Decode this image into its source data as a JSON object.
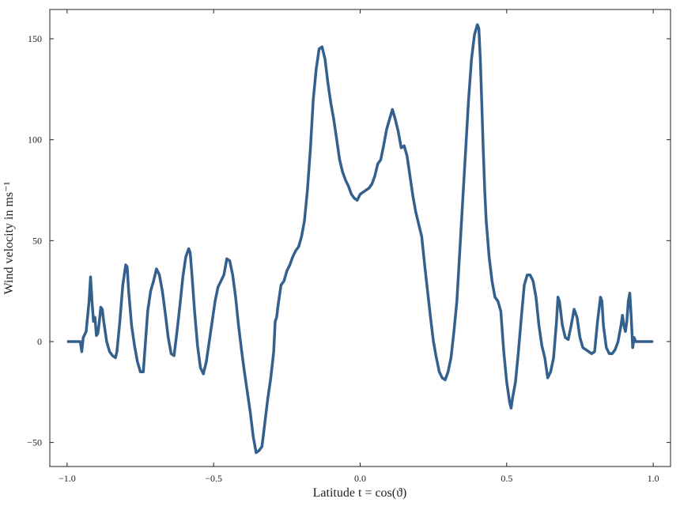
{
  "chart_data": {
    "type": "line",
    "xlabel": "Latitude t = cos(ϑ)",
    "ylabel": "Wind velocity in ms⁻¹",
    "xlim": [
      -1.059,
      1.059
    ],
    "ylim": [
      -61.9,
      164.5
    ],
    "xticks": [
      {
        "value": -1,
        "label": "−1.0"
      },
      {
        "value": -0.5,
        "label": "−0.5"
      },
      {
        "value": 0,
        "label": "0.0"
      },
      {
        "value": 0.5,
        "label": "0.5"
      },
      {
        "value": 1,
        "label": "1.0"
      }
    ],
    "yticks": [
      {
        "value": -50,
        "label": "−50"
      },
      0,
      50,
      100,
      150
    ],
    "color": "#34608d",
    "x": [
      -1.0,
      -0.98,
      -0.96,
      -0.955,
      -0.95,
      -0.945,
      -0.935,
      -0.925,
      -0.92,
      -0.915,
      -0.91,
      -0.905,
      -0.9,
      -0.895,
      -0.89,
      -0.885,
      -0.88,
      -0.875,
      -0.865,
      -0.855,
      -0.845,
      -0.835,
      -0.83,
      -0.82,
      -0.81,
      -0.8,
      -0.795,
      -0.79,
      -0.78,
      -0.77,
      -0.76,
      -0.75,
      -0.74,
      -0.735,
      -0.725,
      -0.715,
      -0.705,
      -0.695,
      -0.685,
      -0.675,
      -0.665,
      -0.655,
      -0.645,
      -0.635,
      -0.625,
      -0.615,
      -0.605,
      -0.595,
      -0.585,
      -0.58,
      -0.575,
      -0.565,
      -0.555,
      -0.545,
      -0.535,
      -0.525,
      -0.515,
      -0.505,
      -0.495,
      -0.485,
      -0.475,
      -0.465,
      -0.455,
      -0.445,
      -0.435,
      -0.425,
      -0.415,
      -0.405,
      -0.395,
      -0.385,
      -0.375,
      -0.365,
      -0.355,
      -0.345,
      -0.335,
      -0.325,
      -0.315,
      -0.305,
      -0.295,
      -0.29,
      -0.285,
      -0.28,
      -0.27,
      -0.26,
      -0.25,
      -0.24,
      -0.23,
      -0.22,
      -0.21,
      -0.2,
      -0.19,
      -0.18,
      -0.17,
      -0.16,
      -0.15,
      -0.14,
      -0.13,
      -0.12,
      -0.11,
      -0.1,
      -0.09,
      -0.08,
      -0.07,
      -0.06,
      -0.05,
      -0.04,
      -0.03,
      -0.02,
      -0.01,
      0.0,
      0.01,
      0.02,
      0.03,
      0.04,
      0.05,
      0.06,
      0.07,
      0.08,
      0.09,
      0.1,
      0.11,
      0.12,
      0.13,
      0.14,
      0.15,
      0.16,
      0.17,
      0.18,
      0.19,
      0.2,
      0.21,
      0.22,
      0.23,
      0.24,
      0.25,
      0.26,
      0.27,
      0.28,
      0.29,
      0.3,
      0.31,
      0.32,
      0.33,
      0.34,
      0.35,
      0.36,
      0.37,
      0.38,
      0.39,
      0.4,
      0.405,
      0.41,
      0.415,
      0.42,
      0.425,
      0.43,
      0.44,
      0.45,
      0.46,
      0.47,
      0.48,
      0.49,
      0.5,
      0.51,
      0.515,
      0.52,
      0.53,
      0.54,
      0.55,
      0.56,
      0.57,
      0.58,
      0.59,
      0.6,
      0.61,
      0.62,
      0.63,
      0.64,
      0.65,
      0.66,
      0.67,
      0.675,
      0.68,
      0.69,
      0.7,
      0.71,
      0.72,
      0.73,
      0.74,
      0.75,
      0.76,
      0.77,
      0.78,
      0.79,
      0.8,
      0.81,
      0.82,
      0.825,
      0.83,
      0.84,
      0.85,
      0.86,
      0.87,
      0.88,
      0.89,
      0.895,
      0.9,
      0.905,
      0.91,
      0.915,
      0.92,
      0.925,
      0.93,
      0.935,
      0.94,
      0.95,
      1.0
    ],
    "values": [
      0,
      0,
      0,
      0,
      -5,
      2,
      5,
      20,
      32,
      20,
      10,
      12,
      3,
      4,
      10,
      17,
      16,
      10,
      0,
      -5,
      -7,
      -8,
      -5,
      10,
      28,
      38,
      37,
      25,
      8,
      -2,
      -10,
      -15,
      -15,
      -5,
      15,
      25,
      30,
      36,
      33,
      25,
      14,
      2,
      -6,
      -7,
      5,
      18,
      32,
      42,
      46,
      44,
      35,
      15,
      -2,
      -13,
      -16,
      -10,
      0,
      10,
      20,
      27,
      30,
      33,
      41,
      40,
      33,
      22,
      8,
      -4,
      -15,
      -25,
      -35,
      -47,
      -55,
      -54,
      -52,
      -40,
      -28,
      -18,
      -5,
      10,
      12,
      18,
      28,
      30,
      35,
      38,
      42,
      45,
      47,
      52,
      60,
      75,
      95,
      120,
      135,
      145,
      146,
      140,
      128,
      118,
      110,
      100,
      90,
      84,
      80,
      77,
      73,
      71,
      70,
      73,
      74,
      75,
      76,
      78,
      82,
      88,
      90,
      97,
      105,
      110,
      115,
      110,
      104,
      96,
      97,
      92,
      82,
      72,
      64,
      58,
      52,
      38,
      25,
      12,
      0,
      -8,
      -15,
      -18,
      -19,
      -15,
      -8,
      5,
      20,
      45,
      70,
      95,
      120,
      140,
      152,
      157,
      155,
      140,
      118,
      95,
      75,
      60,
      42,
      30,
      22,
      20,
      15,
      -5,
      -20,
      -30,
      -33,
      -28,
      -20,
      -5,
      12,
      28,
      33,
      33,
      30,
      22,
      8,
      -2,
      -8,
      -18,
      -15,
      -8,
      10,
      22,
      20,
      8,
      2,
      1,
      8,
      16,
      12,
      2,
      -3,
      -4,
      -5,
      -6,
      -5,
      10,
      22,
      20,
      8,
      -3,
      -6,
      -6,
      -4,
      0,
      8,
      13,
      8,
      5,
      10,
      20,
      24,
      12,
      -3,
      2,
      0,
      0,
      0
    ]
  }
}
